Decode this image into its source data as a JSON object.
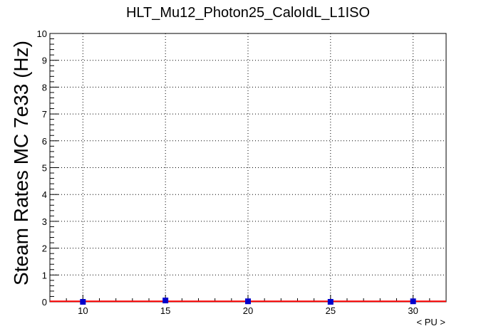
{
  "chart_data": {
    "type": "scatter",
    "title": "HLT_Mu12_Photon25_CaloIdL_L1ISO",
    "xlabel": "< PU >",
    "ylabel": "Steam Rates MC 7e33 (Hz)",
    "xlim": [
      8,
      32
    ],
    "ylim": [
      0,
      10
    ],
    "xticks": [
      10,
      15,
      20,
      25,
      30
    ],
    "yticks": [
      0,
      1,
      2,
      3,
      4,
      5,
      6,
      7,
      8,
      9,
      10
    ],
    "grid": true,
    "series": [
      {
        "marker": "square",
        "color": "#0000cc",
        "x": [
          10,
          15,
          20,
          25,
          30
        ],
        "y": [
          0.0,
          0.05,
          0.02,
          0.0,
          0.02
        ]
      }
    ],
    "fit": {
      "type": "line",
      "color": "#ff0000",
      "x": [
        8,
        32
      ],
      "y": [
        0.02,
        0.02
      ]
    }
  }
}
